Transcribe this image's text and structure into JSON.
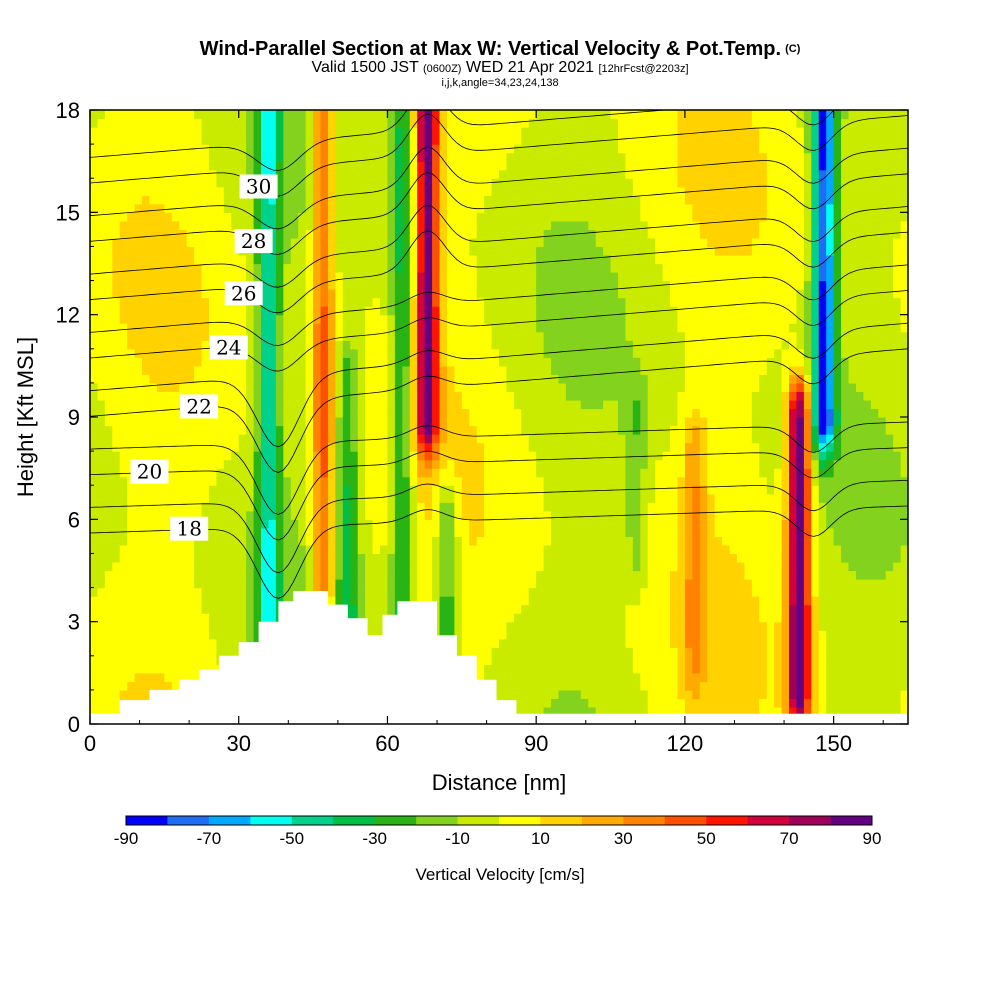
{
  "chart_data": {
    "type": "heatmap",
    "title": "Wind-Parallel Section at Max W: Vertical Velocity & Pot.Temp.",
    "title_mark": "(C)",
    "subtitle_main": "Valid 1500 JST",
    "subtitle_utc": "(0600Z)",
    "subtitle_date": "WED 21 Apr 2021",
    "subtitle_fcst": "[12hrFcst@2203z]",
    "subtitle_params": "i,j,k,angle=34,23,24,138",
    "xlabel": "Distance [nm]",
    "ylabel": "Height [Kft MSL]",
    "xlim": [
      0,
      165
    ],
    "ylim": [
      0,
      18
    ],
    "x_ticks": [
      "0",
      "30",
      "60",
      "90",
      "120",
      "150"
    ],
    "y_ticks": [
      "0",
      "3",
      "6",
      "9",
      "12",
      "15",
      "18"
    ],
    "colorbar": {
      "title": "Vertical Velocity [cm/s]",
      "tick_labels": [
        "-90",
        "-70",
        "-50",
        "-30",
        "-10",
        "10",
        "30",
        "50",
        "70",
        "90"
      ],
      "colors": [
        "#0000ff",
        "#1e6ef5",
        "#00a8ff",
        "#00ffee",
        "#00d28c",
        "#00be46",
        "#28b414",
        "#82d21e",
        "#c8eb00",
        "#ffff00",
        "#ffd200",
        "#ffaa00",
        "#ff8200",
        "#ff5000",
        "#ff1400",
        "#d2003c",
        "#a0005a",
        "#640082"
      ]
    },
    "vertical_velocity_features": [
      {
        "x": 36,
        "h0": 2,
        "h1": 18,
        "w": -45
      },
      {
        "x": 47,
        "h0": 3,
        "h1": 18,
        "w": 45
      },
      {
        "x": 52,
        "h0": 3,
        "h1": 10,
        "w": -30
      },
      {
        "x": 63,
        "h0": 3,
        "h1": 18,
        "w": -35
      },
      {
        "x": 68,
        "h0": 9,
        "h1": 18,
        "w": 80
      },
      {
        "x": 72,
        "h0": 1,
        "h1": 6,
        "w": -30
      },
      {
        "x": 110,
        "h0": 5,
        "h1": 9,
        "w": -15
      },
      {
        "x": 122,
        "h0": 2,
        "h1": 8,
        "w": 25
      },
      {
        "x": 143,
        "h0": 1,
        "h1": 9,
        "w": 90
      },
      {
        "x": 148,
        "h0": 9,
        "h1": 18,
        "w": -80
      }
    ],
    "theta_contours": [
      {
        "theta": 18,
        "label": "18"
      },
      {
        "theta": 20,
        "label": "20"
      },
      {
        "theta": 22,
        "label": "22"
      },
      {
        "theta": 24,
        "label": "24"
      },
      {
        "theta": 26,
        "label": "26"
      },
      {
        "theta": 28,
        "label": "28"
      },
      {
        "theta": 30,
        "label": "30"
      }
    ],
    "terrain": [
      {
        "x": 0,
        "h": 0.3
      },
      {
        "x": 6,
        "h": 0.7
      },
      {
        "x": 12,
        "h": 1.0
      },
      {
        "x": 18,
        "h": 1.3
      },
      {
        "x": 22,
        "h": 1.6
      },
      {
        "x": 26,
        "h": 2.0
      },
      {
        "x": 30,
        "h": 2.4
      },
      {
        "x": 34,
        "h": 3.0
      },
      {
        "x": 38,
        "h": 3.6
      },
      {
        "x": 41,
        "h": 3.9
      },
      {
        "x": 45,
        "h": 3.9
      },
      {
        "x": 48,
        "h": 3.5
      },
      {
        "x": 52,
        "h": 3.1
      },
      {
        "x": 56,
        "h": 2.6
      },
      {
        "x": 59,
        "h": 3.2
      },
      {
        "x": 62,
        "h": 3.6
      },
      {
        "x": 67,
        "h": 3.6
      },
      {
        "x": 70,
        "h": 2.6
      },
      {
        "x": 74,
        "h": 2.0
      },
      {
        "x": 78,
        "h": 1.3
      },
      {
        "x": 82,
        "h": 0.7
      },
      {
        "x": 86,
        "h": 0.3
      },
      {
        "x": 165,
        "h": 0.3
      }
    ]
  }
}
